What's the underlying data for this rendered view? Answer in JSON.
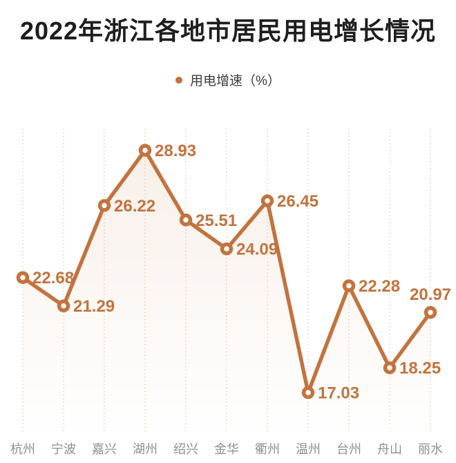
{
  "header": {
    "title": "2022年浙江各地市居民用电增长情况"
  },
  "legend": {
    "label": "用电增速（%）",
    "marker": "ring-icon"
  },
  "colors": {
    "accent": "#c2733e",
    "title": "#1e1e1e",
    "axis_label": "#8f8f8f",
    "grid_line": "#e8cdb3",
    "legend_text": "#3c3c3c",
    "background": "#ffffff",
    "area_top": "rgba(194,115,62,0.12)",
    "area_bottom": "rgba(194,115,62,0)"
  },
  "chart_data": {
    "type": "line",
    "title": "2022年浙江各地市居民用电增长情况",
    "categories": [
      "杭州",
      "宁波",
      "嘉兴",
      "湖州",
      "绍兴",
      "金华",
      "衢州",
      "温州",
      "台州",
      "舟山",
      "丽水"
    ],
    "series": [
      {
        "name": "用电增速（%）",
        "values": [
          22.68,
          21.29,
          26.22,
          28.93,
          25.51,
          24.09,
          26.45,
          17.03,
          22.28,
          18.25,
          20.97
        ]
      }
    ],
    "xlabel": "",
    "ylabel": "用电增速（%）",
    "ylim": [
      15,
      30
    ],
    "grid": "vertical-dotted",
    "legend_position": "top-center",
    "value_labels": "shown",
    "label_decimals": 2,
    "marker_style": "ring",
    "area_fill": "gradient-fade-down"
  }
}
